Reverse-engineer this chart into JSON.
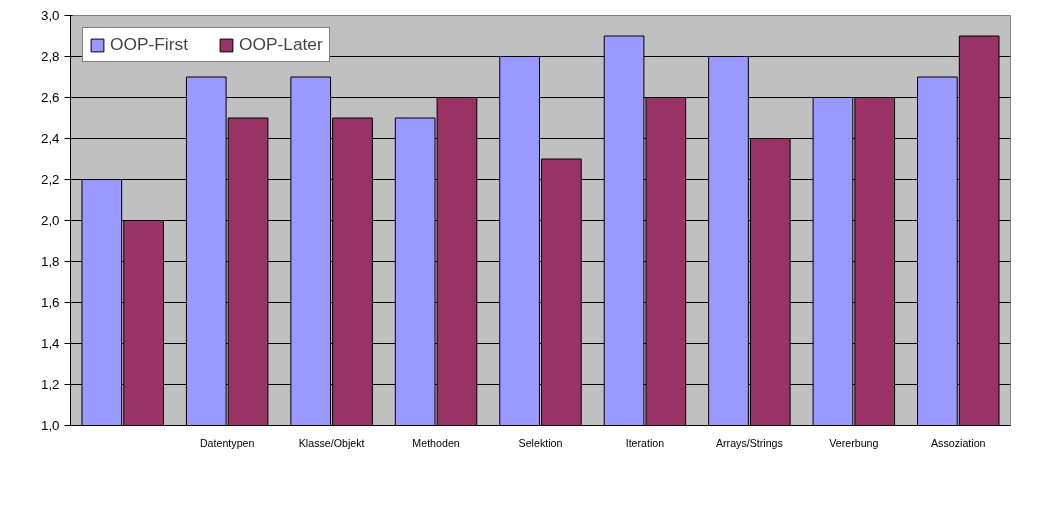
{
  "chart_data": {
    "type": "bar",
    "categories": [
      null,
      "Datentypen",
      "Klasse/Objekt",
      "Methoden",
      "Selektion",
      "Iteration",
      "Arrays/Strings",
      "Vererbung",
      "Assoziation"
    ],
    "series": [
      {
        "name": "OOP-First",
        "color": "#9999ff",
        "values": [
          2.2,
          2.7,
          2.7,
          2.5,
          2.8,
          2.9,
          2.8,
          2.6,
          2.7
        ]
      },
      {
        "name": "OOP-Later",
        "color": "#993366",
        "values": [
          2.0,
          2.5,
          2.5,
          2.6,
          2.3,
          2.6,
          2.4,
          2.6,
          2.9
        ]
      }
    ],
    "ylim": [
      1.0,
      3.0
    ],
    "yticks": [
      {
        "value": 1.0,
        "label": "1,0"
      },
      {
        "value": 1.2,
        "label": "1,2"
      },
      {
        "value": 1.4,
        "label": "1,4"
      },
      {
        "value": 1.6,
        "label": "1,6"
      },
      {
        "value": 1.8,
        "label": "1,8"
      },
      {
        "value": 2.0,
        "label": "2,0"
      },
      {
        "value": 2.2,
        "label": "2,2"
      },
      {
        "value": 2.4,
        "label": "2,4"
      },
      {
        "value": 2.6,
        "label": "2,6"
      },
      {
        "value": 2.8,
        "label": "2,8"
      },
      {
        "value": 3.0,
        "label": "3,0"
      }
    ],
    "grid": "y",
    "legend": "top left"
  }
}
